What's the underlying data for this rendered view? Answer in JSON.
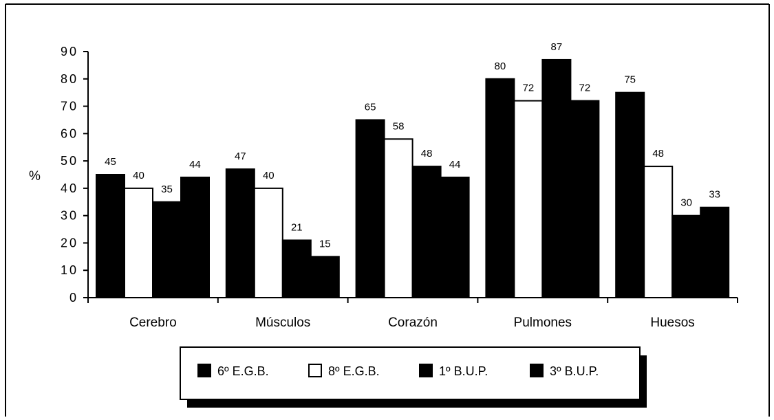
{
  "chart_data": {
    "type": "bar",
    "ylabel": "%",
    "xlabel": "",
    "ylim": [
      0,
      90
    ],
    "yticks": [
      0,
      10,
      20,
      30,
      40,
      50,
      60,
      70,
      80,
      90
    ],
    "categories": [
      "Cerebro",
      "Músculos",
      "Corazón",
      "Pulmones",
      "Huesos"
    ],
    "series": [
      {
        "name": "6º E.G.B.",
        "fill": "#000000",
        "values": [
          45,
          47,
          65,
          80,
          75
        ]
      },
      {
        "name": "8º E.G.B.",
        "fill": "#ffffff",
        "values": [
          40,
          40,
          58,
          72,
          48
        ]
      },
      {
        "name": "1º B.U.P.",
        "fill": "#000000",
        "values": [
          35,
          21,
          48,
          87,
          30
        ]
      },
      {
        "name": "3º B.U.P.",
        "fill": "#000000",
        "values": [
          44,
          15,
          44,
          72,
          33
        ]
      }
    ],
    "legend_position": "bottom",
    "grid": false
  }
}
